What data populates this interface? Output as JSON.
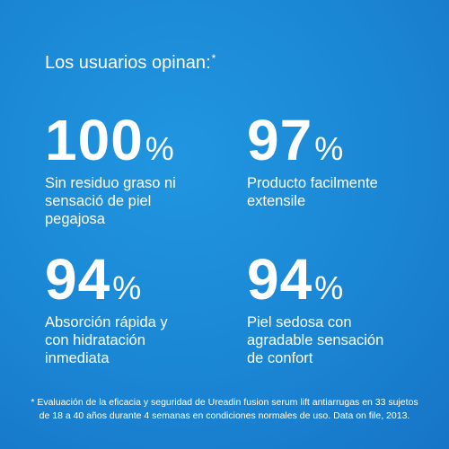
{
  "header": {
    "title": "Los usuarios opinan:",
    "title_mark": "*"
  },
  "stats": [
    {
      "value": 100,
      "unit": "%",
      "description": [
        "Sin residuo graso ni",
        "sensació de piel",
        "pegajosa"
      ]
    },
    {
      "value": 97,
      "unit": "%",
      "description": [
        "Producto facilmente",
        "extensile"
      ]
    },
    {
      "value": 94,
      "unit": "%",
      "description": [
        "Absorción rápida y",
        "con hidratación",
        "inmediata"
      ]
    },
    {
      "value": 94,
      "unit": "%",
      "description": [
        "Piel sedosa con",
        "agradable sensación",
        "de confort"
      ]
    }
  ],
  "footnote": [
    "* Evaluación de la eficacia y seguridad de Ureadin fusion serum lift antiarrugas en 33 sujetos",
    "de 18 a 40 años durante 4 semanas en condiciones normales de uso. Data on file, 2013."
  ]
}
